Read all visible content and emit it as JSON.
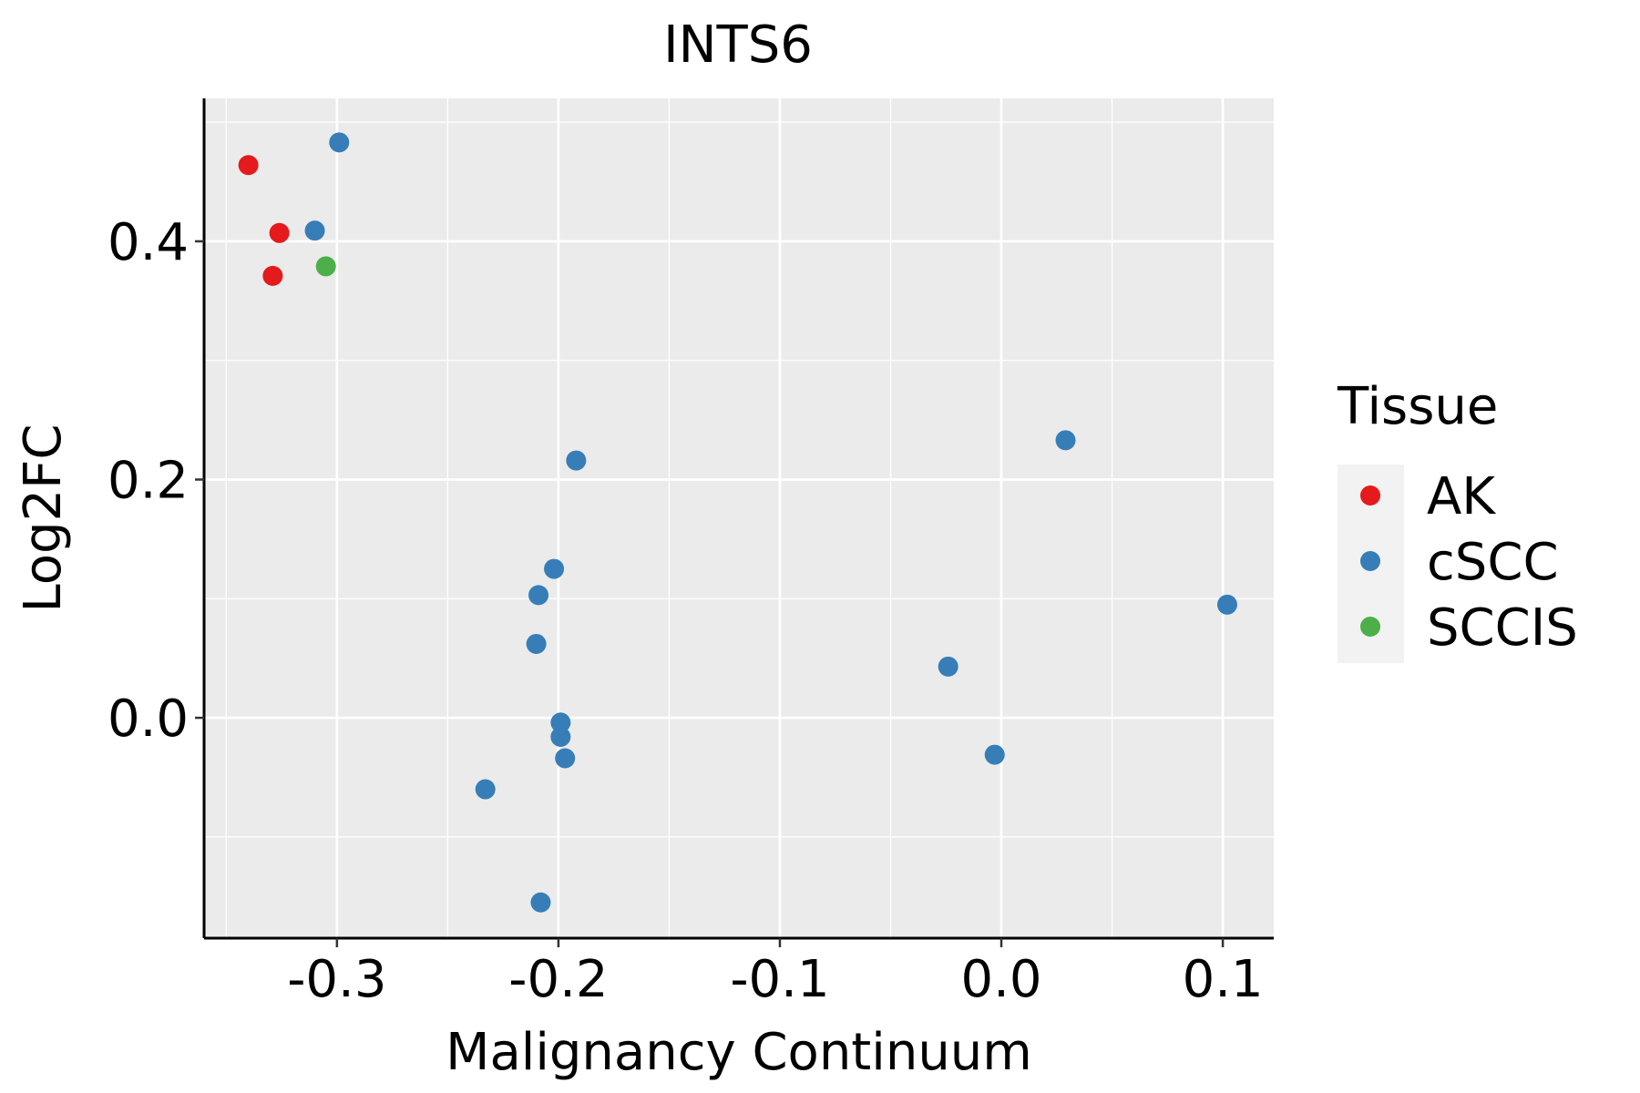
{
  "chart_data": {
    "type": "scatter",
    "title": "INTS6",
    "xlabel": "Malignancy Continuum",
    "ylabel": "Log2FC",
    "xlim": [
      -0.36,
      0.123
    ],
    "ylim": [
      -0.185,
      0.52
    ],
    "x_ticks": [
      -0.3,
      -0.2,
      -0.1,
      0.0,
      0.1
    ],
    "x_tick_labels": [
      "-0.3",
      "-0.2",
      "-0.1",
      "0.0",
      "0.1"
    ],
    "y_ticks": [
      0.0,
      0.2,
      0.4
    ],
    "y_tick_labels": [
      "0.0",
      "0.2",
      "0.4"
    ],
    "grid": true,
    "background": "#ebebeb",
    "legend": {
      "title": "Tissue",
      "position": "right",
      "entries": [
        {
          "label": "AK",
          "color": "#e41a1c"
        },
        {
          "label": "cSCC",
          "color": "#377eb8"
        },
        {
          "label": "SCCIS",
          "color": "#4daf4a"
        }
      ]
    },
    "series": [
      {
        "name": "AK",
        "color": "#e41a1c",
        "points": [
          {
            "x": -0.34,
            "y": 0.464
          },
          {
            "x": -0.326,
            "y": 0.407
          },
          {
            "x": -0.329,
            "y": 0.371
          }
        ]
      },
      {
        "name": "cSCC",
        "color": "#377eb8",
        "points": [
          {
            "x": -0.299,
            "y": 0.483
          },
          {
            "x": -0.31,
            "y": 0.409
          },
          {
            "x": -0.192,
            "y": 0.216
          },
          {
            "x": 0.029,
            "y": 0.233
          },
          {
            "x": -0.202,
            "y": 0.125
          },
          {
            "x": -0.209,
            "y": 0.103
          },
          {
            "x": -0.21,
            "y": 0.062
          },
          {
            "x": 0.102,
            "y": 0.095
          },
          {
            "x": -0.024,
            "y": 0.043
          },
          {
            "x": -0.199,
            "y": -0.004
          },
          {
            "x": -0.199,
            "y": -0.016
          },
          {
            "x": -0.197,
            "y": -0.034
          },
          {
            "x": -0.003,
            "y": -0.031
          },
          {
            "x": -0.233,
            "y": -0.06
          },
          {
            "x": -0.208,
            "y": -0.155
          }
        ]
      },
      {
        "name": "SCCIS",
        "color": "#4daf4a",
        "points": [
          {
            "x": -0.305,
            "y": 0.379
          }
        ]
      }
    ]
  }
}
